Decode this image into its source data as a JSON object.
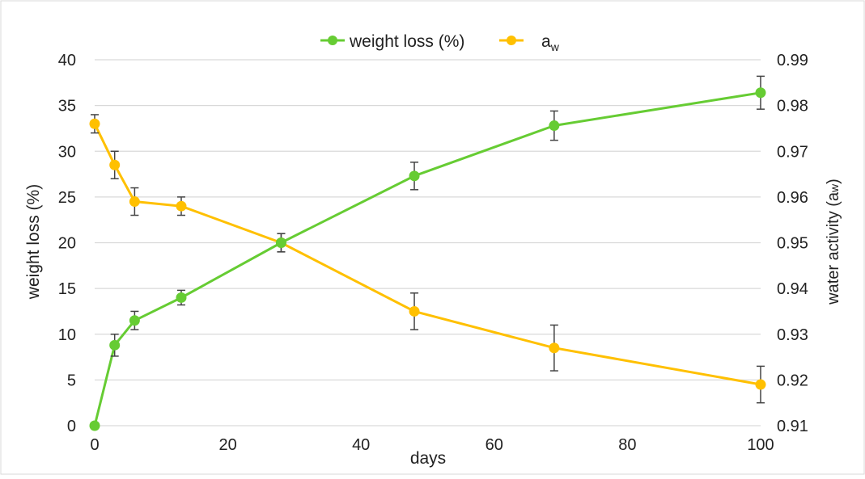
{
  "chart_data": {
    "type": "line",
    "x": [
      0,
      3,
      6,
      13,
      28,
      48,
      69,
      100
    ],
    "series": [
      {
        "name": "weight loss (%)",
        "axis": "left",
        "color": "#66cc33",
        "values": [
          0,
          8.8,
          11.5,
          14.0,
          20.0,
          27.3,
          32.8,
          36.4
        ],
        "errors": [
          0,
          1.2,
          1.0,
          0.8,
          1.0,
          1.5,
          1.6,
          1.8
        ]
      },
      {
        "name": "aw",
        "axis": "right",
        "color": "#ffc000",
        "values": [
          0.976,
          0.967,
          0.959,
          0.958,
          0.95,
          0.935,
          0.927,
          0.919
        ],
        "errors": [
          0.002,
          0.003,
          0.003,
          0.002,
          0.002,
          0.004,
          0.005,
          0.004
        ]
      }
    ],
    "xlabel": "days",
    "ylabel": "weight loss (%)",
    "y2label": "water activity (aw)",
    "xlim": [
      0,
      100
    ],
    "ylim": [
      0,
      40
    ],
    "y2lim": [
      0.91,
      0.99
    ],
    "xticks": [
      "0",
      "20",
      "40",
      "60",
      "80",
      "100"
    ],
    "yticks": [
      "0",
      "5",
      "10",
      "15",
      "20",
      "25",
      "30",
      "35",
      "40"
    ],
    "y2ticks": [
      "0.91",
      "0.92",
      "0.93",
      "0.94",
      "0.95",
      "0.96",
      "0.97",
      "0.98",
      "0.99"
    ],
    "grid": true,
    "legend_position": "top-center",
    "legend": {
      "weight_label": "weight loss (%)",
      "aw_label_main": "a",
      "aw_label_sub": "w"
    },
    "y2label_main": "water activity (a",
    "y2label_sub": "w",
    "y2label_end": ")"
  }
}
